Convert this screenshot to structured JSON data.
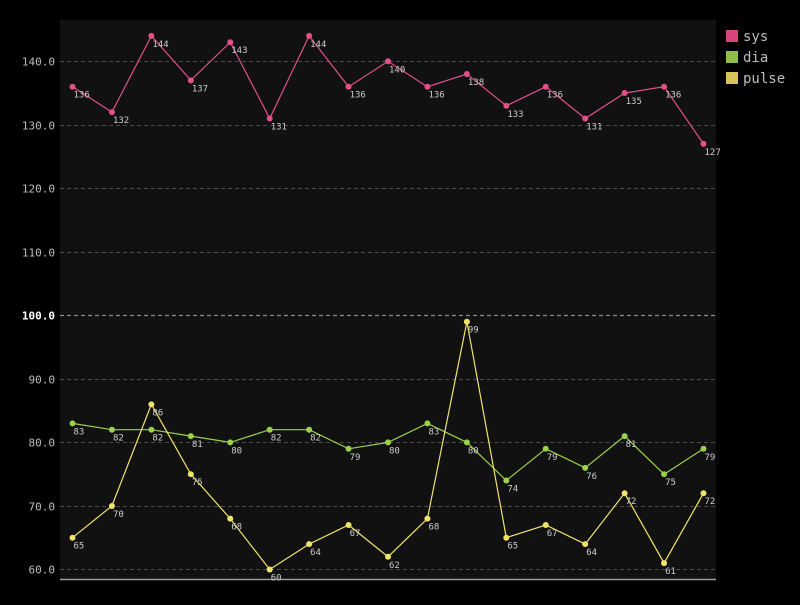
{
  "chart_data": {
    "type": "line",
    "title": "",
    "xlabel": "",
    "ylabel": "",
    "ylim": [
      58.5,
      146.5
    ],
    "yticks": [
      "60.0",
      "70.0",
      "80.0",
      "90.0",
      "100.0",
      "110.0",
      "120.0",
      "130.0",
      "140.0"
    ],
    "grid": true,
    "legend_position": "top-right",
    "series": [
      {
        "name": "sys",
        "color": "#e2508a",
        "values": [
          136,
          132,
          144,
          137,
          143,
          131,
          144,
          136,
          140,
          136,
          138,
          133,
          136,
          131,
          135,
          136,
          127
        ]
      },
      {
        "name": "dia",
        "color": "#9bd149",
        "values": [
          83,
          82,
          82,
          81,
          80,
          82,
          82,
          79,
          80,
          83,
          80,
          74,
          79,
          76,
          81,
          75,
          79
        ]
      },
      {
        "name": "pulse",
        "color": "#f0e36a",
        "values": [
          65,
          70,
          86,
          75,
          68,
          60,
          64,
          67,
          62,
          68,
          99,
          65,
          67,
          64,
          72,
          61,
          72
        ]
      }
    ]
  },
  "colors": {
    "background": "#000000",
    "plot_background": "#111111",
    "grid": "#4a4a4a",
    "axis_text": "#bbbbbb",
    "label_text": "#cccccc",
    "legend_sys": "#d9447f",
    "legend_dia": "#8fbd47",
    "legend_pulse": "#d6c45a"
  }
}
